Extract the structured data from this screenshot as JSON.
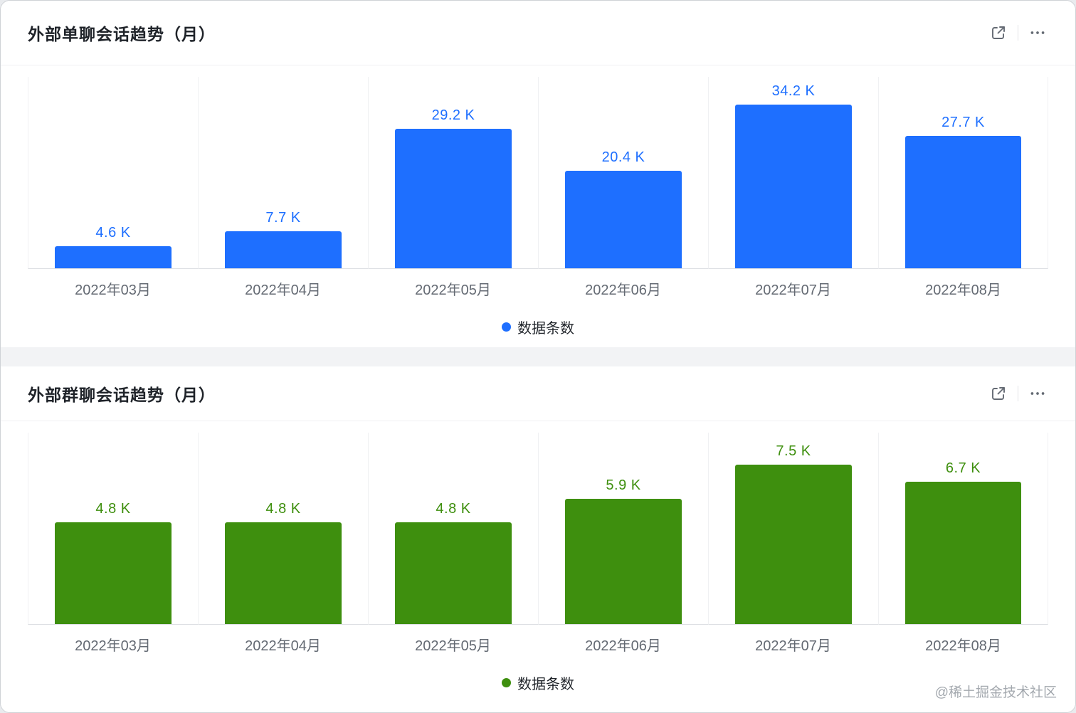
{
  "watermark": "@稀土掘金技术社区",
  "chart_data": [
    {
      "type": "bar",
      "title": "外部单聊会话趋势（月）",
      "legend_label": "数据条数",
      "legend_position": "bottom-center",
      "bar_color": "#1E6FFF",
      "label_color": "#1E6FFF",
      "categories": [
        "2022年03月",
        "2022年04月",
        "2022年05月",
        "2022年06月",
        "2022年07月",
        "2022年08月"
      ],
      "values": [
        4600,
        7700,
        29200,
        20400,
        34200,
        27700
      ],
      "value_labels": [
        "4.6 K",
        "7.7 K",
        "29.2 K",
        "20.4 K",
        "34.2 K",
        "27.7 K"
      ],
      "ylim": [
        0,
        40000
      ],
      "grid": "vertical-separators",
      "icons": [
        "export-icon",
        "more-icon"
      ]
    },
    {
      "type": "bar",
      "title": "外部群聊会话趋势（月）",
      "legend_label": "数据条数",
      "legend_position": "bottom-center",
      "bar_color": "#3E8F0E",
      "label_color": "#3E8F0E",
      "categories": [
        "2022年03月",
        "2022年04月",
        "2022年05月",
        "2022年06月",
        "2022年07月",
        "2022年08月"
      ],
      "values": [
        4800,
        4800,
        4800,
        5900,
        7500,
        6700
      ],
      "value_labels": [
        "4.8 K",
        "4.8 K",
        "4.8 K",
        "5.9 K",
        "7.5 K",
        "6.7 K"
      ],
      "ylim": [
        0,
        9000
      ],
      "grid": "vertical-separators",
      "icons": [
        "export-icon",
        "more-icon"
      ]
    }
  ]
}
